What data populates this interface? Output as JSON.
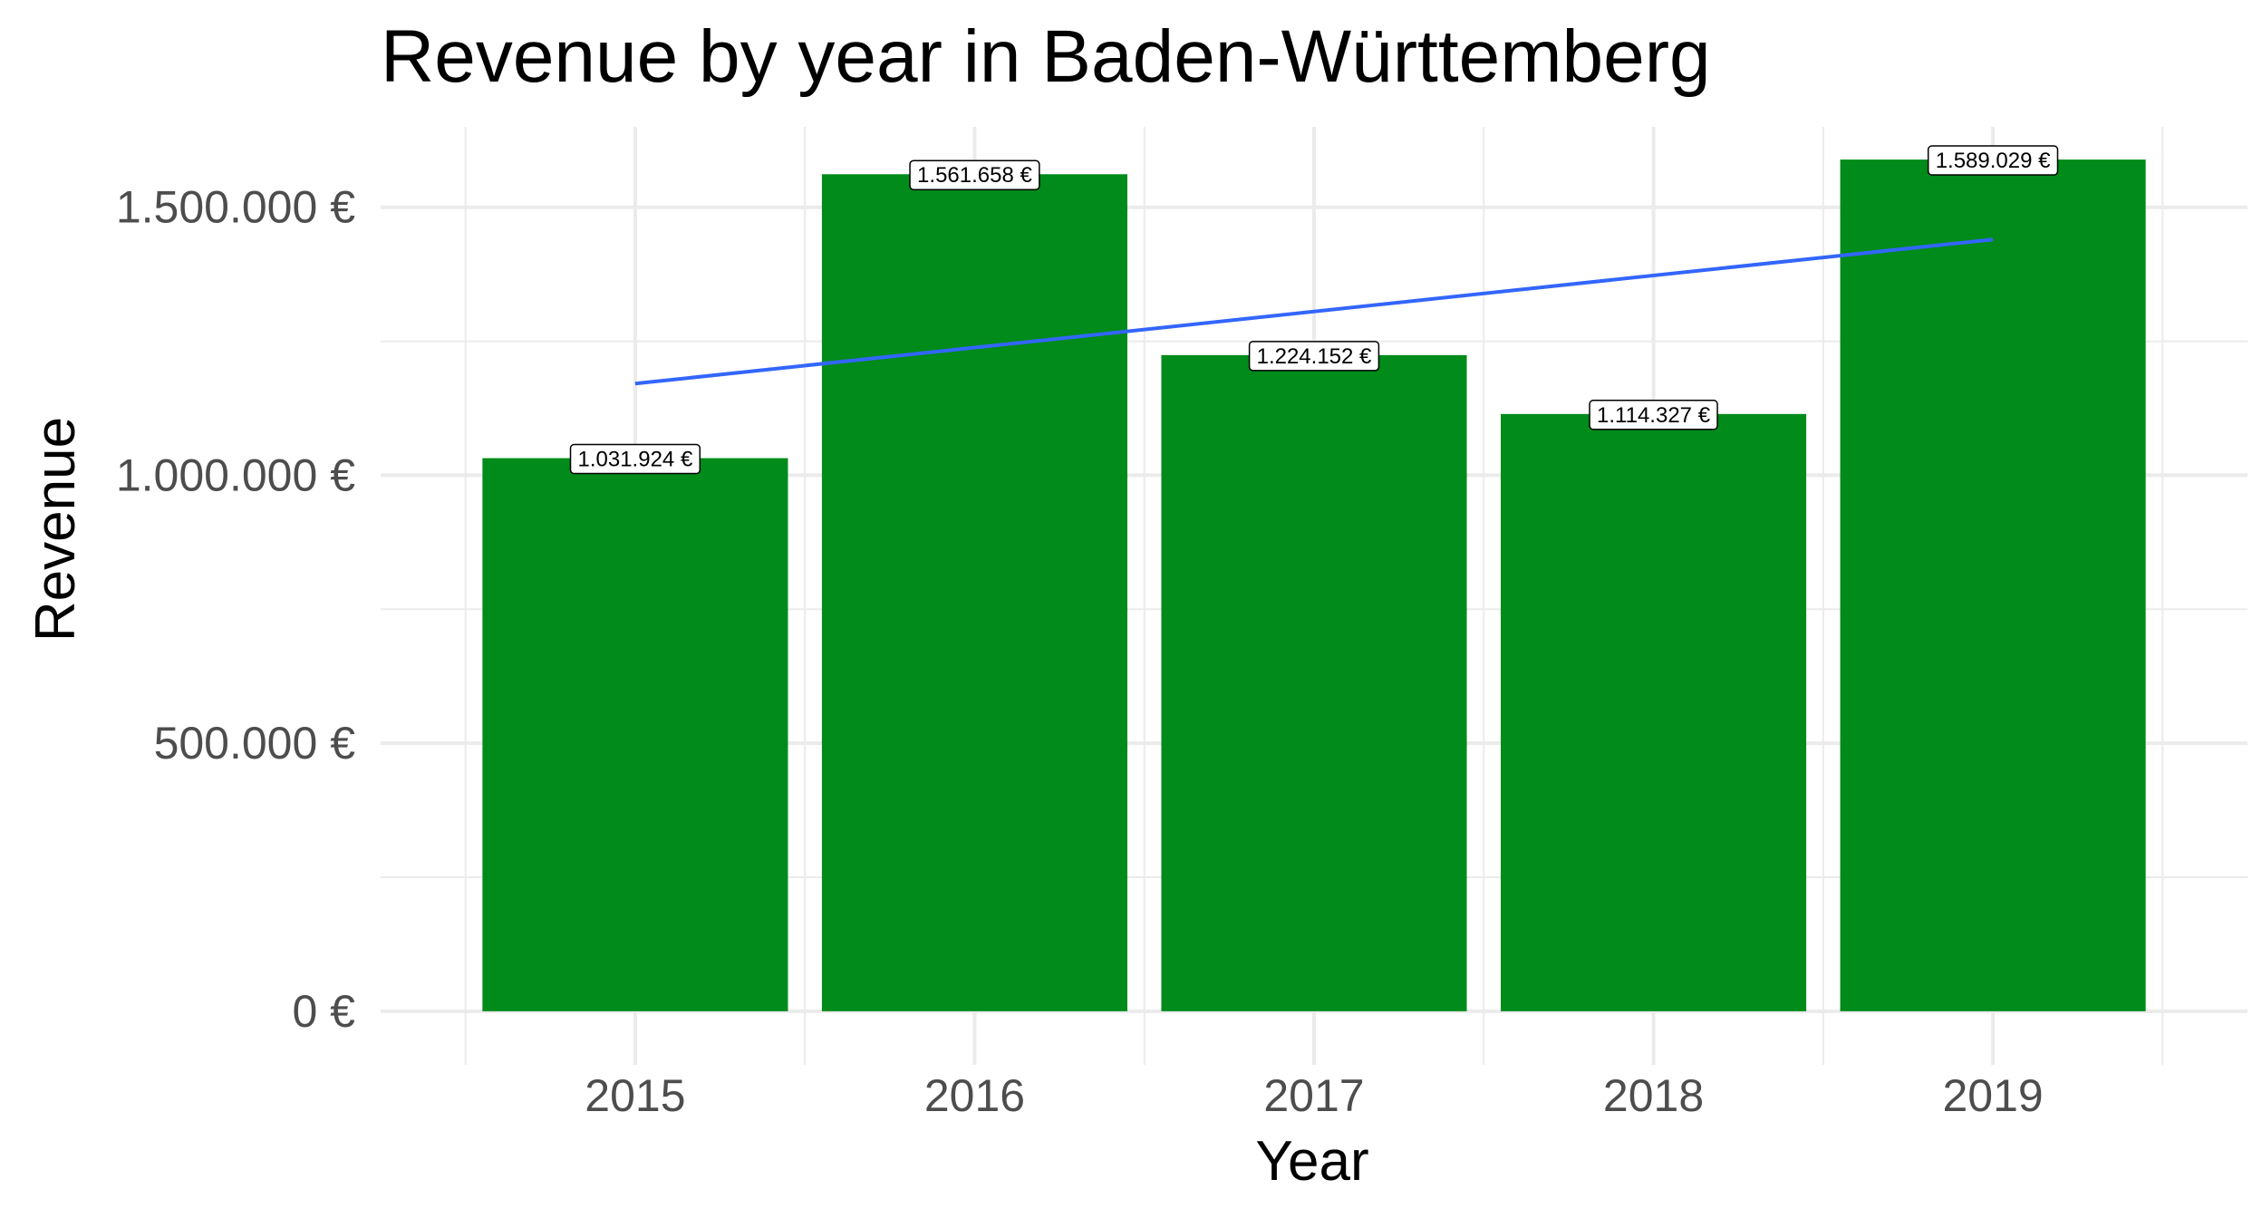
{
  "chart_data": {
    "type": "bar",
    "title": "Revenue by year in Baden-Württemberg",
    "xlabel": "Year",
    "ylabel": "Revenue",
    "categories": [
      "2015",
      "2016",
      "2017",
      "2018",
      "2019"
    ],
    "values": [
      1031924,
      1561658,
      1224152,
      1114327,
      1589029
    ],
    "data_labels": [
      "1.031.924 €",
      "1.561.658 €",
      "1.224.152 €",
      "1.114.327 €",
      "1.589.029 €"
    ],
    "y_ticks": [
      {
        "value": 0,
        "label": "0 €"
      },
      {
        "value": 500000,
        "label": "500.000 €"
      },
      {
        "value": 1000000,
        "label": "1.000.000 €"
      },
      {
        "value": 1500000,
        "label": "1.500.000 €"
      }
    ],
    "ylim": [
      -100000,
      1650000
    ],
    "grid": true,
    "trend_line": {
      "start": [
        2015,
        1171000
      ],
      "end": [
        2019,
        1440000
      ]
    },
    "colors": {
      "bar": "#008b1a",
      "trend": "#3366ff",
      "grid": "#ebebeb",
      "tick_text": "#4d4d4d"
    }
  }
}
